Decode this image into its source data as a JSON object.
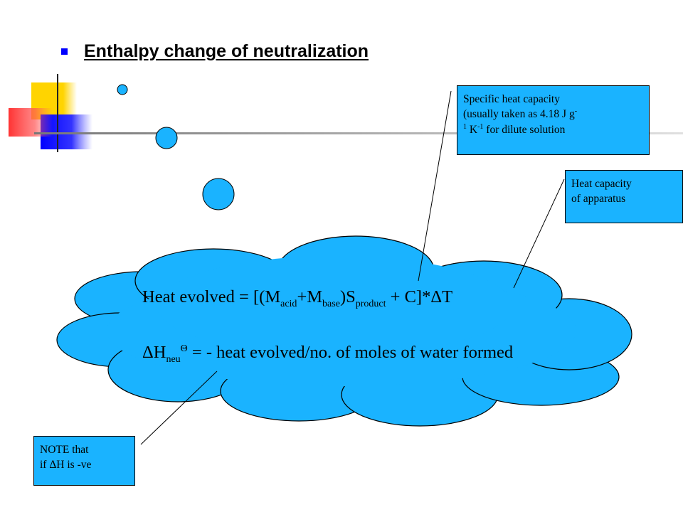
{
  "slide": {
    "title": "Enthalpy change of neutralization",
    "colors": {
      "accent_blue": "#0000ff",
      "cloud_fill": "#1ab3ff",
      "callout_fill": "#1ab3ff",
      "deco_yellow": "#ffd400",
      "deco_red": "#ff3333"
    }
  },
  "equation1": {
    "lead": "Heat evolved = [(M",
    "sub_acid": "acid",
    "plus_m": "+M",
    "sub_base": "base",
    "close_s": ")S",
    "sub_product": "product",
    "tail": " + C]*ΔT"
  },
  "equation2": {
    "lead": "ΔH",
    "sub_neu": "neu",
    "sup_theta": "Θ",
    "tail": " = - heat evolved/no. of moles of water formed"
  },
  "callouts": {
    "specific_heat": {
      "line1": "Specific heat capacity",
      "line2a": "(usually taken as 4.18 J g",
      "sup1": "-",
      "line3a": "1",
      "line3b": " K",
      "sup2": "-1",
      "line3c": " for dilute solution"
    },
    "apparatus": {
      "line1": "Heat capacity",
      "line2": "of apparatus"
    },
    "note": {
      "line1": "NOTE that",
      "line2": "if ΔH is -ve"
    }
  }
}
